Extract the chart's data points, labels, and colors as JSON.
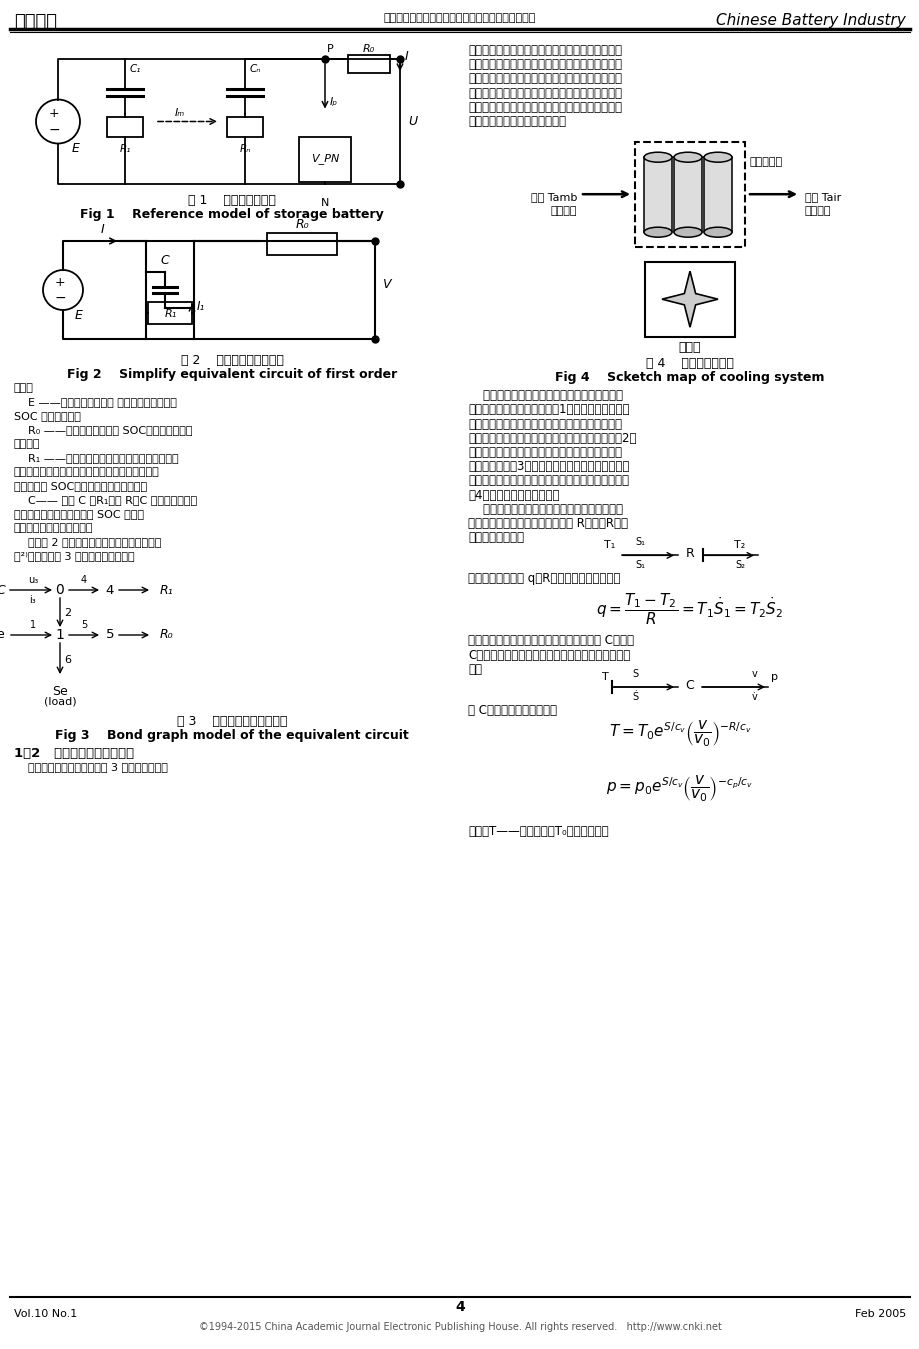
{
  "header_left": "电池工业",
  "header_center": "廖连莹，等：电动汽车蓄电池的键合图法建模与仿真",
  "header_right": "Chinese Battery Industry",
  "footer_left": "Vol.10 No.1",
  "footer_right": "Feb 2005",
  "footer_center": "4",
  "footer_copyright": "©1994-2015 China Academic Journal Electronic Publishing House. All rights reserved.   http://www.cnki.net",
  "fig1_caption_cn": "图 1    蓄电池参考模型",
  "fig1_caption_en": "Fig 1    Reference model of storage battery",
  "fig2_caption_cn": "图 2    简化的一阶等效电路",
  "fig2_caption_en": "Fig 2    Simplify equivalent circuit of first order",
  "fig3_caption_cn": "图 3    等效电路的键合图模型",
  "fig3_caption_en": "Fig 3    Bond graph model of the equivalent circuit",
  "fig4_caption_cn": "图 4    冷却系统示意图",
  "fig4_caption_en": "Fig 4    Scketch map of cooling system",
  "section_12": "1．2   冷却系统的键合图模型",
  "bg_color": "#ffffff"
}
